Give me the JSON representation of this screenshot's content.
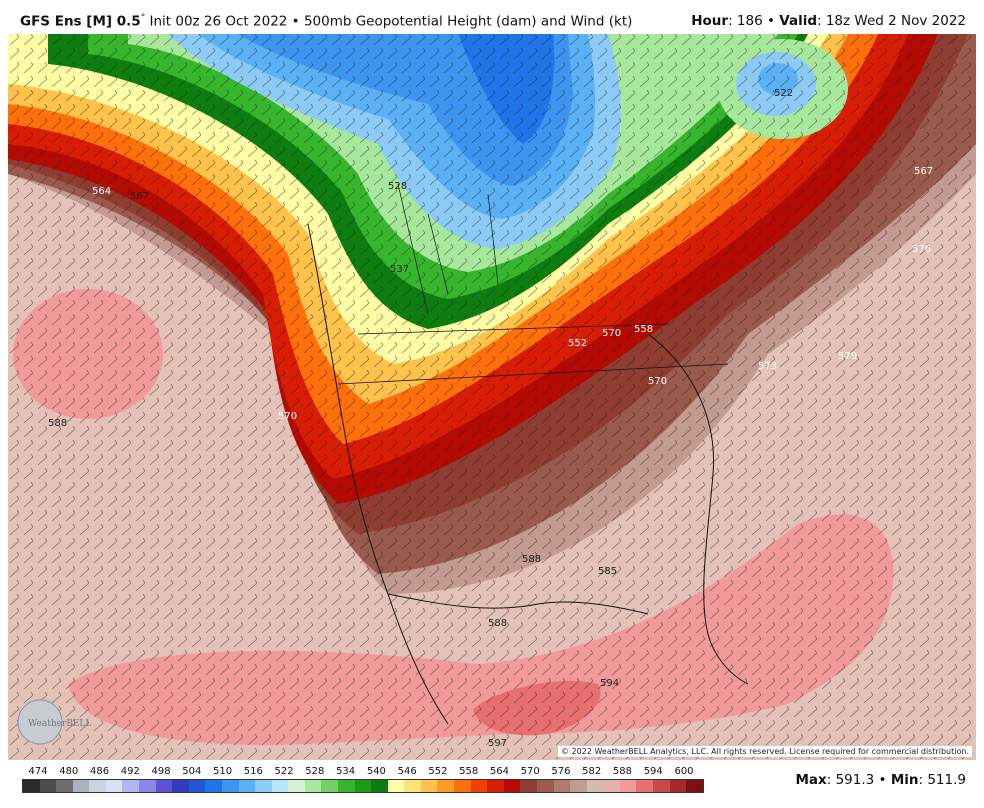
{
  "header": {
    "model": "GFS Ens [M] 0.5",
    "degree": "°",
    "init": "Init 00z 26 Oct 2022",
    "sep": "•",
    "product": "500mb Geopotential Height (dam) and Wind (kt)",
    "hour_label": "Hour",
    "hour_value": ": 186",
    "valid_label": "Valid",
    "valid_value": ": 18z Wed 2 Nov 2022"
  },
  "map": {
    "copyright": "© 2022 WeatherBELL Analytics, LLC. All rights reserved. License required for commercial distribution.",
    "logo_text": "WeatherBELL",
    "contour_labels": [
      "564",
      "567",
      "570",
      "528",
      "537",
      "552",
      "522",
      "567",
      "576",
      "558",
      "573",
      "570",
      "579",
      "588",
      "585",
      "588",
      "594",
      "597",
      "588",
      "570"
    ]
  },
  "colorbar": {
    "ticks": [
      "474",
      "480",
      "486",
      "492",
      "498",
      "504",
      "510",
      "516",
      "522",
      "528",
      "534",
      "540",
      "546",
      "552",
      "558",
      "564",
      "570",
      "576",
      "582",
      "588",
      "594",
      "600"
    ],
    "colors": [
      "#2a2a2a",
      "#4d4d4d",
      "#6e6e6e",
      "#a9b2bd",
      "#c9d4e2",
      "#d6e2f7",
      "#b3b7f0",
      "#8b86e8",
      "#5b53d4",
      "#2e3bbd",
      "#1e56d6",
      "#1f74e8",
      "#3d95f0",
      "#5bb1f5",
      "#8ccbf5",
      "#b9e3f7",
      "#d7f1d6",
      "#a8e89c",
      "#6fd35f",
      "#37b52d",
      "#1a9a18",
      "#0d7d10",
      "#fffca6",
      "#ffe27a",
      "#ffc24a",
      "#ff9c23",
      "#ff6f0a",
      "#f04006",
      "#d81d04",
      "#b50a02",
      "#8f3d30",
      "#9a5a4d",
      "#b07a6e",
      "#c39b91",
      "#d6b9b0",
      "#e8b0ad",
      "#f29a9a",
      "#e86f6f",
      "#c94a4a",
      "#a8282a",
      "#7a1010"
    ]
  },
  "maxmin": {
    "max_label": "Max",
    "max_value": ": 591.3",
    "sep": "•",
    "min_label": "Min",
    "min_value": ": 511.9"
  }
}
